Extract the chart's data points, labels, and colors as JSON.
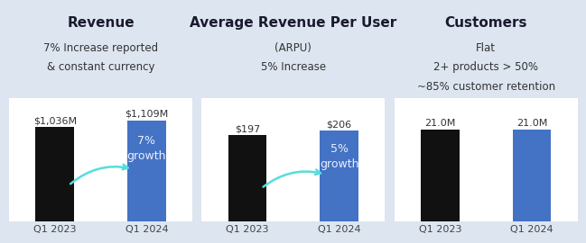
{
  "panels": [
    {
      "title": "Revenue",
      "subtitle": "7% Increase reported\n& constant currency",
      "bars": [
        {
          "label": "Q1 2023",
          "value": 1036,
          "color": "#111111",
          "value_label": "$1,036M"
        },
        {
          "label": "Q1 2024",
          "value": 1109,
          "color": "#4472c4",
          "value_label": "$1,109M"
        }
      ],
      "growth_text": "7%\ngrowth",
      "ylim": [
        0,
        1350
      ]
    },
    {
      "title": "Average Revenue Per User",
      "subtitle": "(ARPU)\n5% Increase",
      "bars": [
        {
          "label": "Q1 2023",
          "value": 197,
          "color": "#111111",
          "value_label": "$197"
        },
        {
          "label": "Q1 2024",
          "value": 206,
          "color": "#4472c4",
          "value_label": "$206"
        }
      ],
      "growth_text": "5%\ngrowth",
      "ylim": [
        0,
        280
      ]
    },
    {
      "title": "Customers",
      "subtitle": "Flat\n2+ products > 50%\n~85% customer retention",
      "bars": [
        {
          "label": "Q1 2023",
          "value": 21.0,
          "color": "#111111",
          "value_label": "21.0M"
        },
        {
          "label": "Q1 2024",
          "value": 21.0,
          "color": "#4472c4",
          "value_label": "21.0M"
        }
      ],
      "growth_text": null,
      "ylim": [
        0,
        28
      ]
    }
  ],
  "fig_bg": "#dde5f0",
  "header_bg": "#dde5f0",
  "chart_bg": "#ffffff",
  "arrow_color": "#55dddd",
  "growth_text_color": "#e8f0ff",
  "bar_label_color": "#333333",
  "axis_label_color": "#444444",
  "title_fontsize": 11,
  "subtitle_fontsize": 8.5,
  "value_label_fontsize": 8,
  "axis_tick_fontsize": 8,
  "growth_fontsize": 9
}
